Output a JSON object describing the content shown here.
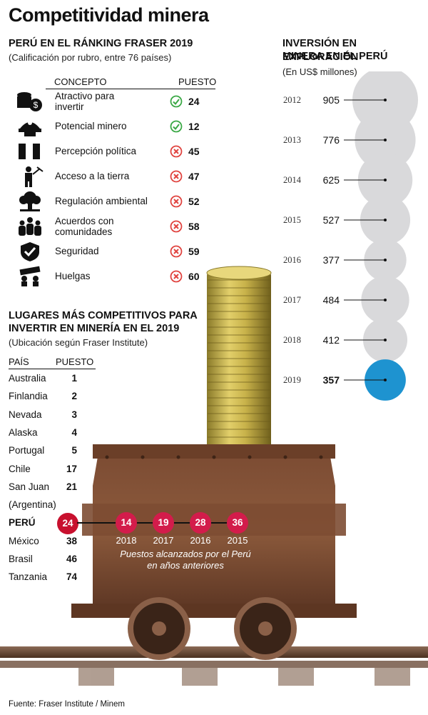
{
  "title": "Competitividad minera",
  "ranking": {
    "heading": "PERÚ EN EL RÁNKING FRASER 2019",
    "subtitle": "(Calificación por rubro, entre 76 países)",
    "col_concept": "CONCEPTO",
    "col_position": "PUESTO",
    "rows": [
      {
        "label": "Atractivo para invertir",
        "position": "24",
        "status": "ok",
        "icon": "money-stack-icon"
      },
      {
        "label": "Potencial minero",
        "position": "12",
        "status": "ok",
        "icon": "miner-helmet-icon"
      },
      {
        "label": "Percepción política",
        "position": "45",
        "status": "bad",
        "icon": "peru-flag-icon"
      },
      {
        "label": "Acceso a la tierra",
        "position": "47",
        "status": "bad",
        "icon": "miner-pickaxe-icon"
      },
      {
        "label": "Regulación ambiental",
        "position": "52",
        "status": "bad",
        "icon": "tree-icon"
      },
      {
        "label": "Acuerdos con comunidades",
        "position": "58",
        "status": "bad",
        "icon": "community-icon"
      },
      {
        "label": "Seguridad",
        "position": "59",
        "status": "bad",
        "icon": "shield-check-icon"
      },
      {
        "label": "Huelgas",
        "position": "60",
        "status": "bad",
        "icon": "strike-icon"
      }
    ]
  },
  "places": {
    "heading_line1": "LUGARES MÁS COMPETITIVOS PARA",
    "heading_line2": "INVERTIR EN MINERÍA EN EL 2019",
    "subtitle": "(Ubicación según Fraser Institute)",
    "col_country": "PAÍS",
    "col_position": "PUESTO",
    "rows": [
      {
        "country": "Australia",
        "position": "1"
      },
      {
        "country": "Finlandia",
        "position": "2"
      },
      {
        "country": "Nevada",
        "position": "3"
      },
      {
        "country": "Alaska",
        "position": "4"
      },
      {
        "country": "Portugal",
        "position": "5"
      },
      {
        "country": "Chile",
        "position": "17"
      },
      {
        "country": "San Juan",
        "position": "21"
      },
      {
        "country": "(Argentina)",
        "position": ""
      },
      {
        "country": "PERÚ",
        "position": "24"
      },
      {
        "country": "México",
        "position": "38"
      },
      {
        "country": "Brasil",
        "position": "46"
      },
      {
        "country": "Tanzania",
        "position": "74"
      }
    ],
    "peru_history": [
      {
        "year": "2018",
        "position": "14"
      },
      {
        "year": "2017",
        "position": "19"
      },
      {
        "year": "2016",
        "position": "28"
      },
      {
        "year": "2015",
        "position": "36"
      }
    ],
    "history_caption_line1": "Puestos alcanzados por el Perú",
    "history_caption_line2": "en años anteriores"
  },
  "investment": {
    "heading_line1": "INVERSIÓN EN EXPLORACIÓN",
    "heading_line2": "MINERA EN EL PERÚ",
    "subtitle": "(En US$ millones)"
  },
  "chart_data": {
    "type": "bubble",
    "title": "INVERSIÓN EN EXPLORACIÓN MINERA EN EL PERÚ",
    "ylabel": "(En US$ millones)",
    "categories": [
      "2012",
      "2013",
      "2014",
      "2015",
      "2016",
      "2017",
      "2018",
      "2019"
    ],
    "values": [
      905,
      776,
      625,
      527,
      377,
      484,
      412,
      357
    ],
    "highlight": "2019",
    "colors": {
      "default": "#d9d9db",
      "highlight": "#1e93d0"
    }
  },
  "colors": {
    "check_green": "#3aa845",
    "cross_red": "#e0433f",
    "peru_badge": "#c8102e",
    "history_badge": "#d31c4b"
  },
  "footer": "Fuente: Fraser Institute / Minem"
}
